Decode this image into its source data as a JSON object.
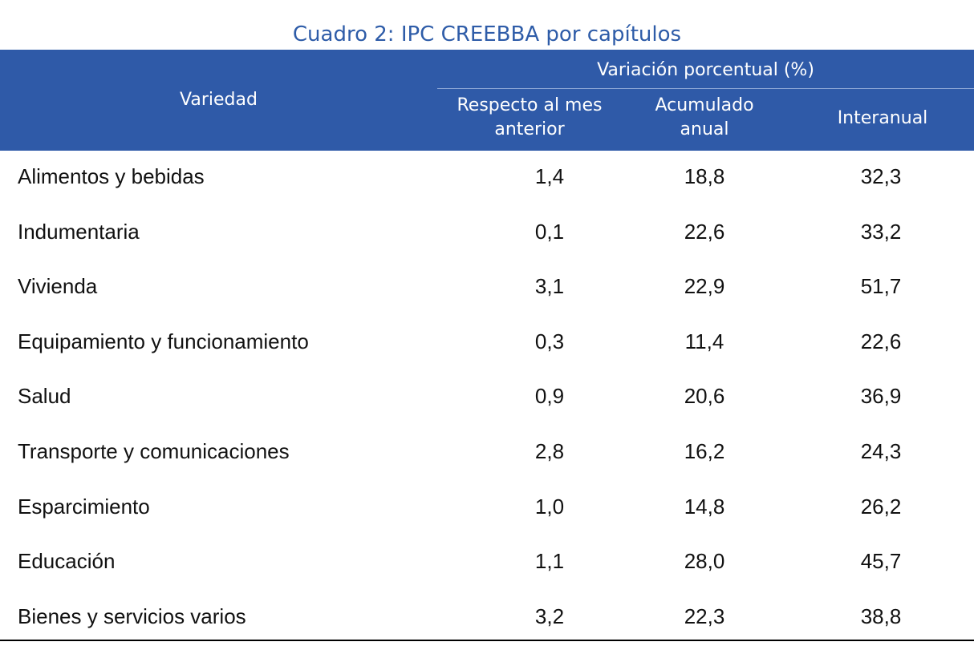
{
  "title": "Cuadro 2: IPC CREEBBA por capítulos",
  "header": {
    "first": "Variedad",
    "group": "Variación porcentual (%)",
    "columns": [
      "Respecto al mes anterior",
      "Acumulado anual",
      "Interanual"
    ]
  },
  "table": {
    "rows": [
      [
        "Alimentos y bebidas",
        "1,4",
        "18,8",
        "32,3"
      ],
      [
        "Indumentaria",
        "0,1",
        "22,6",
        "33,2"
      ],
      [
        "Vivienda",
        "3,1",
        "22,9",
        "51,7"
      ],
      [
        "Equipamiento y funcionamiento",
        "0,3",
        "11,4",
        "22,6"
      ],
      [
        "Salud",
        "0,9",
        "20,6",
        "36,9"
      ],
      [
        "Transporte y comunicaciones",
        "2,8",
        "16,2",
        "24,3"
      ],
      [
        "Esparcimiento",
        "1,0",
        "14,8",
        "26,2"
      ],
      [
        "Educación",
        "1,1",
        "28,0",
        "45,7"
      ],
      [
        "Bienes y servicios varios",
        "3,2",
        "22,3",
        "38,8"
      ]
    ]
  }
}
